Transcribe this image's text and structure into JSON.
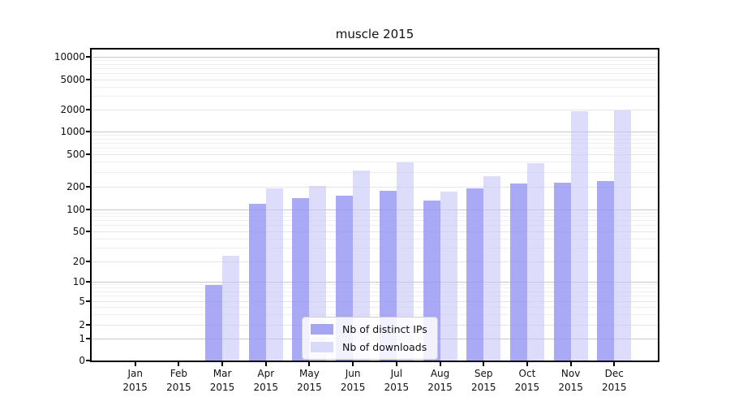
{
  "title": "muscle 2015",
  "chart_data": {
    "type": "bar",
    "title": "muscle 2015",
    "categories": [
      "Jan 2015",
      "Feb 2015",
      "Mar 2015",
      "Apr 2015",
      "May 2015",
      "Jun 2015",
      "Jul 2015",
      "Aug 2015",
      "Sep 2015",
      "Oct 2015",
      "Nov 2015",
      "Dec 2015"
    ],
    "series": [
      {
        "name": "Nb of distinct IPs",
        "color": "#a5a5f0",
        "fill": "rgba(150,150,243,0.82)",
        "values": [
          0,
          0,
          9,
          119,
          140,
          152,
          177,
          130,
          189,
          221,
          222,
          233
        ]
      },
      {
        "name": "Nb of downloads",
        "color": "#d9d9fa",
        "fill": "rgba(198,198,248,0.60)",
        "values": [
          0,
          0,
          24,
          189,
          206,
          318,
          397,
          172,
          270,
          392,
          1904,
          1950
        ]
      }
    ],
    "xlabel": "",
    "ylabel": "",
    "yscale": "symlog",
    "y_ticks": [
      0,
      1,
      2,
      5,
      10,
      20,
      50,
      100,
      200,
      500,
      1000,
      2000,
      5000,
      10000
    ],
    "ylim": [
      0,
      13000
    ],
    "grid": "horizontal, log minor gridlines",
    "legend_position": "lower center",
    "grid_major_color": "#c9c9c9",
    "grid_mid_color": "#e4e4e4",
    "grid_minor_color": "#f0f0f0",
    "axis_color": "#000000"
  }
}
